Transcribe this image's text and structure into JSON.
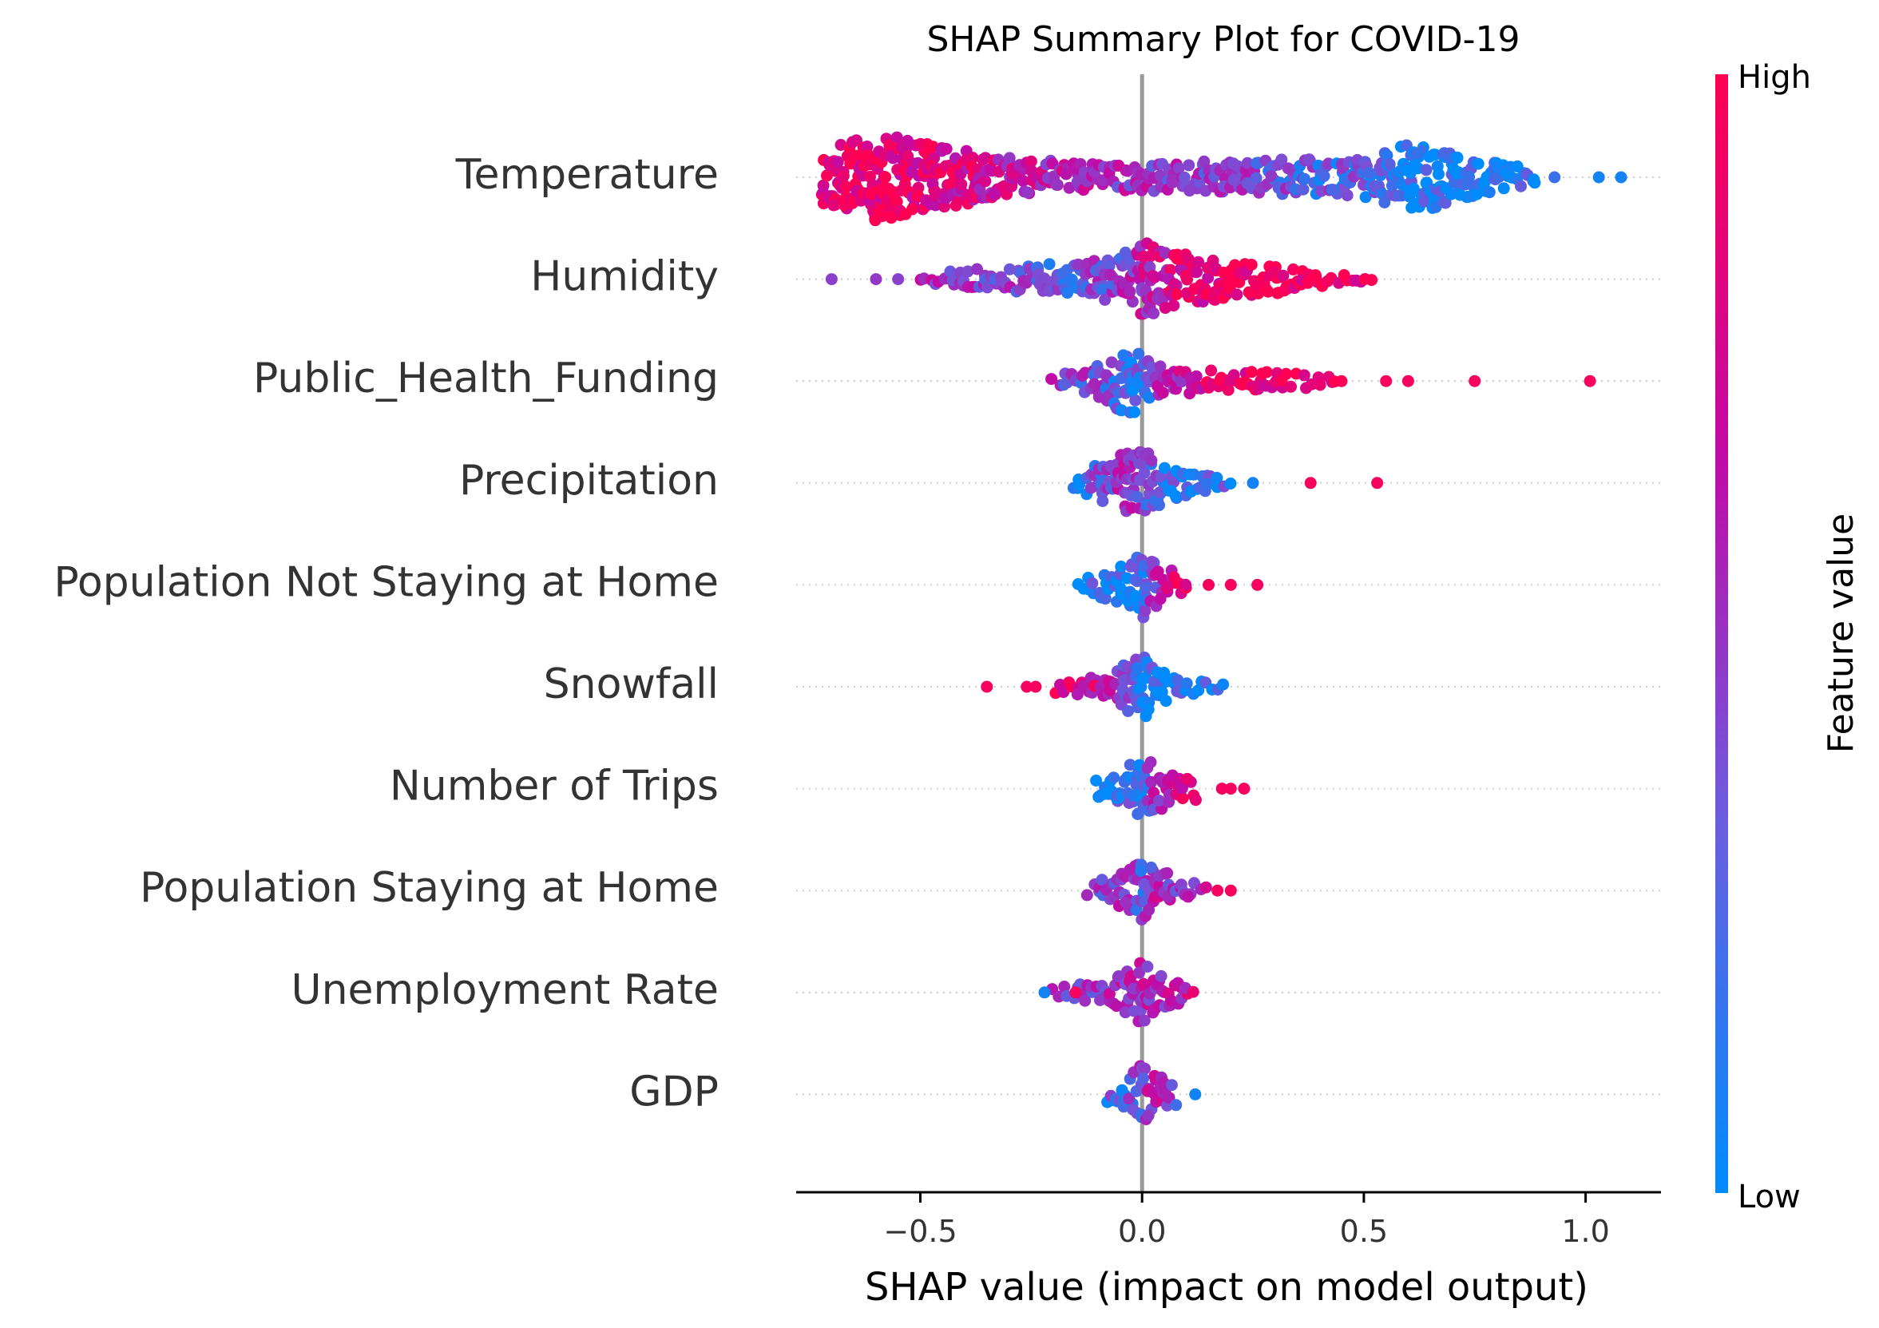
{
  "chart_data": {
    "type": "scatter",
    "subtype": "shap-beeswarm",
    "title": "SHAP Summary Plot for COVID-19",
    "xlabel": "SHAP value (impact on model output)",
    "ylabel": "",
    "xlim": [
      -0.78,
      1.17
    ],
    "xticks": [
      -0.5,
      0.0,
      0.5,
      1.0
    ],
    "xtick_labels": [
      "−0.5",
      "0.0",
      "0.5",
      "1.0"
    ],
    "grid": false,
    "zero_line": true,
    "colorbar": {
      "label": "Feature value",
      "high_label": "High",
      "low_label": "Low",
      "colors": [
        "#008bfb",
        "#7b4fd6",
        "#c20aa6",
        "#ff0052"
      ]
    },
    "features": [
      {
        "name": "Temperature",
        "min": -0.72,
        "max": 1.08,
        "outliers": [
          [
            1.03,
            0.05
          ],
          [
            1.08,
            0.05
          ],
          [
            0.93,
            0.15
          ]
        ],
        "profile": [
          [
            -0.72,
            0.6,
            0.85
          ],
          [
            -0.6,
            1.0,
            0.95
          ],
          [
            -0.45,
            0.7,
            0.8
          ],
          [
            -0.3,
            0.45,
            0.7
          ],
          [
            -0.1,
            0.3,
            0.55
          ],
          [
            0.1,
            0.35,
            0.45
          ],
          [
            0.3,
            0.4,
            0.35
          ],
          [
            0.5,
            0.45,
            0.2
          ],
          [
            0.62,
            0.8,
            0.05
          ],
          [
            0.75,
            0.45,
            0.05
          ],
          [
            0.9,
            0.15,
            0.05
          ]
        ]
      },
      {
        "name": "Humidity",
        "min": -0.7,
        "max": 0.52,
        "outliers": [
          [
            -0.7,
            0.4
          ],
          [
            -0.6,
            0.45
          ],
          [
            -0.55,
            0.4
          ]
        ],
        "profile": [
          [
            -0.5,
            0.15,
            0.5
          ],
          [
            -0.35,
            0.25,
            0.45
          ],
          [
            -0.2,
            0.35,
            0.25
          ],
          [
            -0.05,
            0.5,
            0.4
          ],
          [
            0.0,
            0.9,
            0.6
          ],
          [
            0.1,
            0.55,
            0.8
          ],
          [
            0.2,
            0.45,
            0.95
          ],
          [
            0.3,
            0.35,
            0.95
          ],
          [
            0.45,
            0.1,
            0.95
          ],
          [
            0.52,
            0.05,
            0.95
          ]
        ]
      },
      {
        "name": "Public_Health_Funding",
        "min": -0.2,
        "max": 1.01,
        "outliers": [
          [
            0.75,
            0.95
          ],
          [
            1.01,
            0.95
          ],
          [
            0.6,
            0.95
          ],
          [
            0.55,
            0.95
          ]
        ],
        "profile": [
          [
            -0.2,
            0.15,
            0.45
          ],
          [
            -0.1,
            0.35,
            0.35
          ],
          [
            -0.03,
            0.85,
            0.1
          ],
          [
            0.0,
            0.6,
            0.2
          ],
          [
            0.05,
            0.35,
            0.5
          ],
          [
            0.15,
            0.25,
            0.9
          ],
          [
            0.3,
            0.2,
            0.95
          ],
          [
            0.45,
            0.12,
            0.95
          ]
        ]
      },
      {
        "name": "Precipitation",
        "min": -0.15,
        "max": 0.53,
        "outliers": [
          [
            0.38,
            0.95
          ],
          [
            0.53,
            0.95
          ],
          [
            0.25,
            0.05
          ]
        ],
        "profile": [
          [
            -0.15,
            0.2,
            0.1
          ],
          [
            -0.05,
            0.7,
            0.5
          ],
          [
            0.0,
            0.75,
            0.4
          ],
          [
            0.05,
            0.45,
            0.2
          ],
          [
            0.12,
            0.25,
            0.1
          ],
          [
            0.2,
            0.1,
            0.1
          ]
        ]
      },
      {
        "name": "Population Not Staying at Home",
        "min": -0.14,
        "max": 0.26,
        "outliers": [
          [
            0.2,
            0.95
          ],
          [
            0.26,
            0.95
          ],
          [
            0.15,
            0.95
          ]
        ],
        "profile": [
          [
            -0.14,
            0.15,
            0.05
          ],
          [
            -0.05,
            0.45,
            0.05
          ],
          [
            0.0,
            0.75,
            0.15
          ],
          [
            0.04,
            0.45,
            0.55
          ],
          [
            0.1,
            0.2,
            0.9
          ]
        ]
      },
      {
        "name": "Snowfall",
        "min": -0.35,
        "max": 0.18,
        "outliers": [
          [
            -0.35,
            0.95
          ],
          [
            -0.26,
            0.95
          ],
          [
            -0.24,
            0.95
          ]
        ],
        "profile": [
          [
            -0.2,
            0.15,
            0.9
          ],
          [
            -0.08,
            0.25,
            0.7
          ],
          [
            0.0,
            0.8,
            0.1
          ],
          [
            0.05,
            0.35,
            0.05
          ],
          [
            0.12,
            0.15,
            0.05
          ],
          [
            0.18,
            0.05,
            0.05
          ]
        ]
      },
      {
        "name": "Number of Trips",
        "min": -0.1,
        "max": 0.23,
        "outliers": [
          [
            0.18,
            0.95
          ],
          [
            0.23,
            0.95
          ],
          [
            0.2,
            0.95
          ]
        ],
        "profile": [
          [
            -0.1,
            0.2,
            0.1
          ],
          [
            -0.03,
            0.5,
            0.1
          ],
          [
            0.0,
            0.75,
            0.25
          ],
          [
            0.05,
            0.4,
            0.7
          ],
          [
            0.12,
            0.25,
            0.95
          ]
        ]
      },
      {
        "name": "Population Staying at Home",
        "min": -0.12,
        "max": 0.2,
        "outliers": [
          [
            0.17,
            0.95
          ],
          [
            0.2,
            0.95
          ]
        ],
        "profile": [
          [
            -0.12,
            0.15,
            0.4
          ],
          [
            -0.04,
            0.4,
            0.45
          ],
          [
            0.0,
            0.7,
            0.3
          ],
          [
            0.04,
            0.45,
            0.6
          ],
          [
            0.1,
            0.2,
            0.4
          ],
          [
            0.15,
            0.15,
            0.95
          ]
        ]
      },
      {
        "name": "Unemployment Rate",
        "min": -0.22,
        "max": 0.14,
        "outliers": [
          [
            -0.22,
            0.05
          ],
          [
            -0.15,
            0.95
          ]
        ],
        "profile": [
          [
            -0.2,
            0.12,
            0.4
          ],
          [
            -0.08,
            0.25,
            0.5
          ],
          [
            0.0,
            0.75,
            0.55
          ],
          [
            0.05,
            0.35,
            0.6
          ],
          [
            0.12,
            0.15,
            0.7
          ]
        ]
      },
      {
        "name": "GDP",
        "min": -0.08,
        "max": 0.12,
        "outliers": [
          [
            0.12,
            0.05
          ]
        ],
        "profile": [
          [
            -0.08,
            0.2,
            0.2
          ],
          [
            -0.02,
            0.45,
            0.3
          ],
          [
            0.0,
            0.7,
            0.4
          ],
          [
            0.03,
            0.45,
            0.6
          ],
          [
            0.08,
            0.2,
            0.3
          ]
        ]
      }
    ]
  }
}
